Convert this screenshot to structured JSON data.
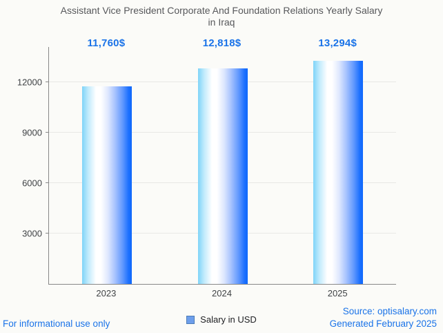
{
  "title": {
    "line1": "Assistant Vice President Corporate And Foundation Relations Yearly Salary",
    "line2": "in Iraq"
  },
  "chart_data": {
    "type": "bar",
    "title": "Assistant Vice President Corporate And Foundation Relations Yearly Salary in Iraq",
    "categories": [
      "2023",
      "2024",
      "2025"
    ],
    "series": [
      {
        "name": "Salary in USD",
        "values": [
          11760,
          12818,
          13294
        ]
      }
    ],
    "value_labels": [
      "11,760$",
      "12,818$",
      "13,294$"
    ],
    "xlabel": "",
    "ylabel": "",
    "yticks": [
      3000,
      6000,
      9000,
      12000
    ],
    "ytick_labels": [
      "3000",
      "6000",
      "9000",
      "12000"
    ],
    "ylim": [
      0,
      14100
    ],
    "grid": true,
    "legend_position": "bottom",
    "bar_gradient": [
      "#7ed4f8",
      "#ffffff",
      "#0f68fb"
    ]
  },
  "legend": {
    "label": "Salary in USD",
    "swatch_fill": "#6d9eeb",
    "swatch_border": "#4c7cb5"
  },
  "footer": {
    "left": "For informational use only",
    "source": "Source: optisalary.com",
    "generated": "Generated February 2025"
  },
  "colors": {
    "accent_blue": "#1a73e8",
    "title_text": "#57585b",
    "tick_text": "#3f4245",
    "axis_line": "#878787",
    "gridline": "#e8e8e5",
    "background": "#fbfbf8"
  }
}
